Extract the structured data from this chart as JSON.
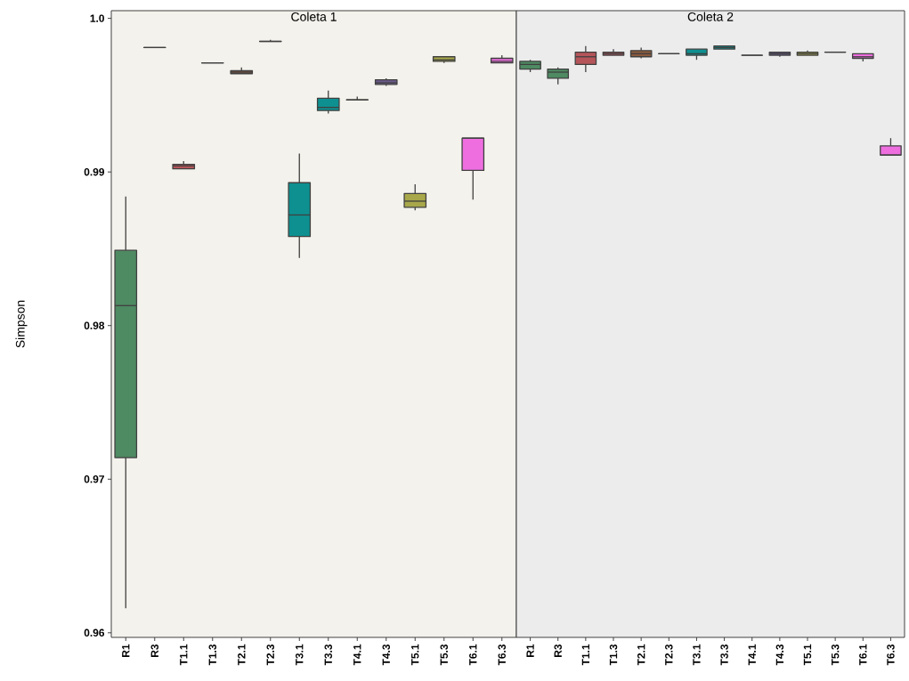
{
  "chart_data": [
    {
      "type": "box",
      "title": "Coleta 1",
      "ylabel": "Simpson",
      "categories": [
        "R1",
        "R3",
        "T1.1",
        "T1.3",
        "T2.1",
        "T2.3",
        "T3.1",
        "T3.3",
        "T4.1",
        "T4.3",
        "T5.1",
        "T5.3",
        "T6.1",
        "T6.3"
      ],
      "colors": [
        "#4e8a62",
        "#404040",
        "#b5555a",
        "#404040",
        "#8a5a3c",
        "#404040",
        "#0e9090",
        "#0e9090",
        "#404040",
        "#6a5a8a",
        "#a8a84a",
        "#a8a84a",
        "#ee6ee0",
        "#ee6ee0"
      ],
      "boxes": [
        {
          "low": 0.9616,
          "q1": 0.9714,
          "median": 0.9813,
          "q3": 0.9849,
          "high": 0.9884
        },
        {
          "low": 0.9981,
          "q1": 0.9981,
          "median": 0.9981,
          "q3": 0.9981,
          "high": 0.9981
        },
        {
          "low": 0.9902,
          "q1": 0.9902,
          "median": 0.9904,
          "q3": 0.9905,
          "high": 0.9907
        },
        {
          "low": 0.9971,
          "q1": 0.9971,
          "median": 0.9971,
          "q3": 0.9971,
          "high": 0.9971
        },
        {
          "low": 0.9964,
          "q1": 0.9964,
          "median": 0.9965,
          "q3": 0.9966,
          "high": 0.9968
        },
        {
          "low": 0.9985,
          "q1": 0.9985,
          "median": 0.9985,
          "q3": 0.9985,
          "high": 0.9986
        },
        {
          "low": 0.9844,
          "q1": 0.9858,
          "median": 0.9872,
          "q3": 0.9893,
          "high": 0.9912
        },
        {
          "low": 0.9938,
          "q1": 0.994,
          "median": 0.9942,
          "q3": 0.9948,
          "high": 0.9953
        },
        {
          "low": 0.9947,
          "q1": 0.9947,
          "median": 0.9947,
          "q3": 0.9947,
          "high": 0.9949
        },
        {
          "low": 0.9956,
          "q1": 0.9957,
          "median": 0.9958,
          "q3": 0.996,
          "high": 0.9961
        },
        {
          "low": 0.9875,
          "q1": 0.9877,
          "median": 0.9881,
          "q3": 0.9886,
          "high": 0.9892
        },
        {
          "low": 0.9971,
          "q1": 0.9972,
          "median": 0.9973,
          "q3": 0.9975,
          "high": 0.9975
        },
        {
          "low": 0.9882,
          "q1": 0.9901,
          "median": 0.9922,
          "q3": 0.9922,
          "high": 0.9922
        },
        {
          "low": 0.9971,
          "q1": 0.9971,
          "median": 0.9972,
          "q3": 0.9974,
          "high": 0.9976
        }
      ],
      "ylim": [
        0.9597,
        1.0005
      ],
      "yticks": [
        0.96,
        0.97,
        0.98,
        0.99,
        {
          "value": 1.0,
          "label": "1.0"
        }
      ]
    },
    {
      "type": "box",
      "title": "Coleta 2",
      "categories": [
        "R1",
        "R3",
        "T1.1",
        "T1.3",
        "T2.1",
        "T2.3",
        "T3.1",
        "T3.3",
        "T4.1",
        "T4.3",
        "T5.1",
        "T5.3",
        "T6.1",
        "T6.3"
      ],
      "colors": [
        "#4e8a62",
        "#4e8a62",
        "#b5555a",
        "#b5555a",
        "#8a5a3c",
        "#404040",
        "#0e9090",
        "#0e9090",
        "#404040",
        "#6a5a8a",
        "#a8a84a",
        "#404040",
        "#ee6ee0",
        "#ee6ee0"
      ],
      "boxes": [
        {
          "low": 0.9965,
          "q1": 0.9967,
          "median": 0.997,
          "q3": 0.9972,
          "high": 0.9973
        },
        {
          "low": 0.9957,
          "q1": 0.9961,
          "median": 0.9965,
          "q3": 0.9967,
          "high": 0.9968
        },
        {
          "low": 0.9965,
          "q1": 0.997,
          "median": 0.9975,
          "q3": 0.9978,
          "high": 0.9982
        },
        {
          "low": 0.9976,
          "q1": 0.9976,
          "median": 0.9977,
          "q3": 0.9978,
          "high": 0.998
        },
        {
          "low": 0.9974,
          "q1": 0.9975,
          "median": 0.9977,
          "q3": 0.9979,
          "high": 0.9981
        },
        {
          "low": 0.9977,
          "q1": 0.9977,
          "median": 0.9977,
          "q3": 0.9977,
          "high": 0.9977
        },
        {
          "low": 0.9973,
          "q1": 0.9976,
          "median": 0.9977,
          "q3": 0.998,
          "high": 0.998
        },
        {
          "low": 0.998,
          "q1": 0.998,
          "median": 0.9981,
          "q3": 0.9982,
          "high": 0.9982
        },
        {
          "low": 0.9976,
          "q1": 0.9976,
          "median": 0.9976,
          "q3": 0.9976,
          "high": 0.9976
        },
        {
          "low": 0.9975,
          "q1": 0.9976,
          "median": 0.9977,
          "q3": 0.9978,
          "high": 0.9978
        },
        {
          "low": 0.9976,
          "q1": 0.9976,
          "median": 0.9977,
          "q3": 0.9978,
          "high": 0.9979
        },
        {
          "low": 0.9978,
          "q1": 0.9978,
          "median": 0.9978,
          "q3": 0.9978,
          "high": 0.9978
        },
        {
          "low": 0.9972,
          "q1": 0.9974,
          "median": 0.9975,
          "q3": 0.9977,
          "high": 0.9977
        },
        {
          "low": 0.9911,
          "q1": 0.9911,
          "median": 0.9911,
          "q3": 0.9917,
          "high": 0.9922
        }
      ],
      "ylim": [
        0.9597,
        1.0005
      ],
      "yticks": [
        0.96,
        0.97,
        0.98,
        0.99,
        1.0
      ],
      "tick_labels": "x"
    }
  ]
}
